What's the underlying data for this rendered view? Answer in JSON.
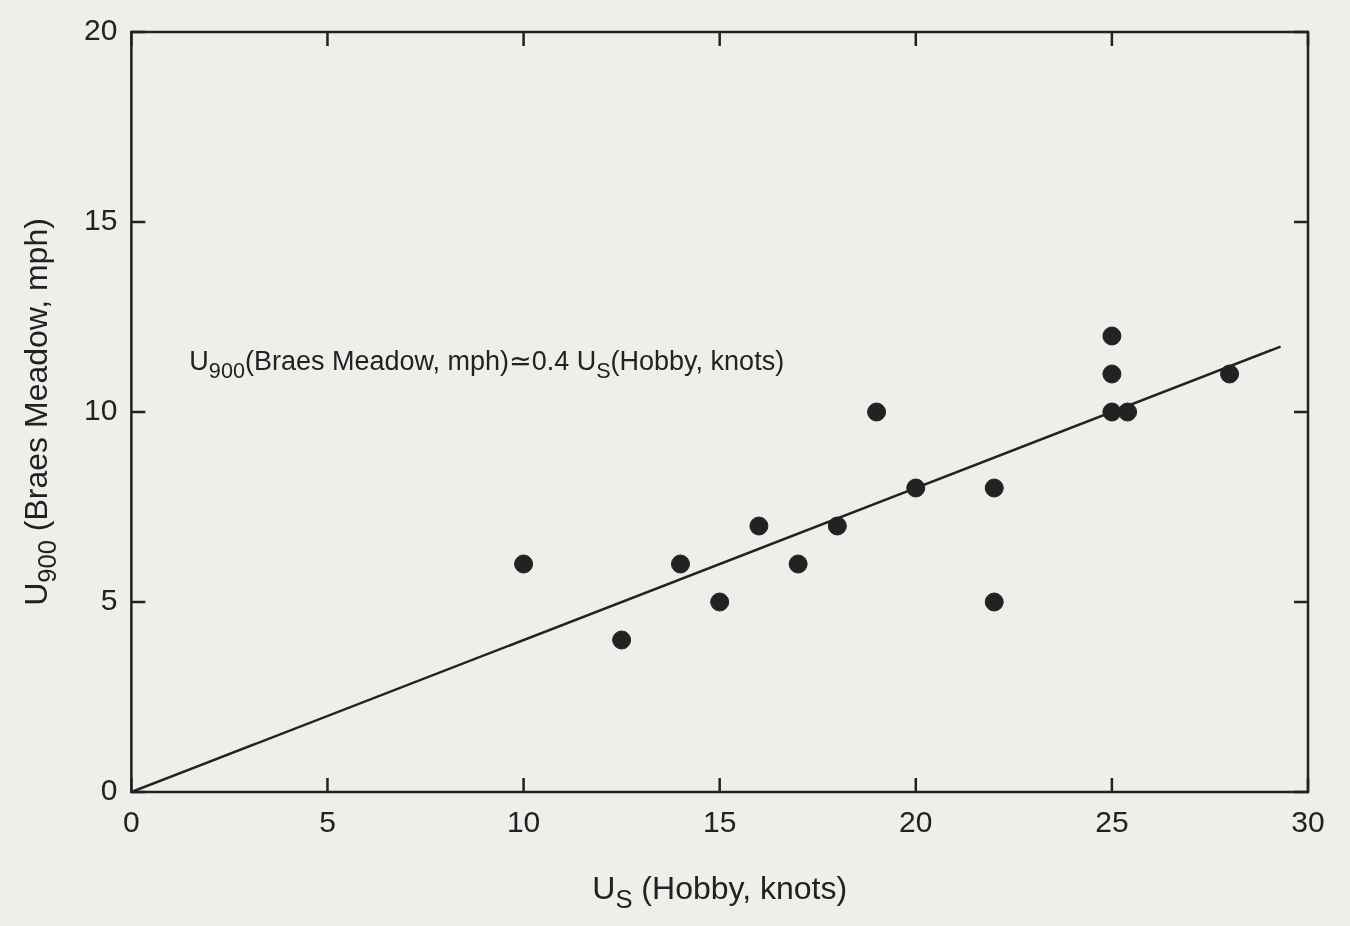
{
  "chart_data": {
    "type": "scatter",
    "xlabel": "U$_{S}$ (Hobby, knots)",
    "ylabel": "U$_{900}$ (Braes Meadow, mph)",
    "xlim": [
      0,
      30
    ],
    "xticks": [
      0,
      5,
      10,
      15,
      20,
      25,
      30
    ],
    "ylim": [
      0,
      20
    ],
    "yticks": [
      0,
      5,
      10,
      15,
      20
    ],
    "grid": false,
    "legend": false,
    "marker": "circle",
    "annotations": [
      "U$_{900}$(Braes Meadow, mph)≃0.4 U$_{S}$(Hobby, knots)"
    ],
    "series": [
      {
        "color": "#222222",
        "x": [
          10,
          12.5,
          14,
          15,
          16,
          17,
          18,
          19,
          20,
          22,
          22,
          25,
          25,
          25,
          25.4,
          28
        ],
        "values": [
          6,
          4,
          6,
          5,
          7,
          6,
          7,
          10,
          8,
          8,
          5,
          12,
          11,
          10,
          10,
          11
        ]
      },
      {
        "type": "line",
        "color": "#222222",
        "line_style": "solid",
        "marker": "none",
        "x": [
          0,
          29.3
        ],
        "values": [
          0,
          11.72
        ]
      }
    ]
  }
}
